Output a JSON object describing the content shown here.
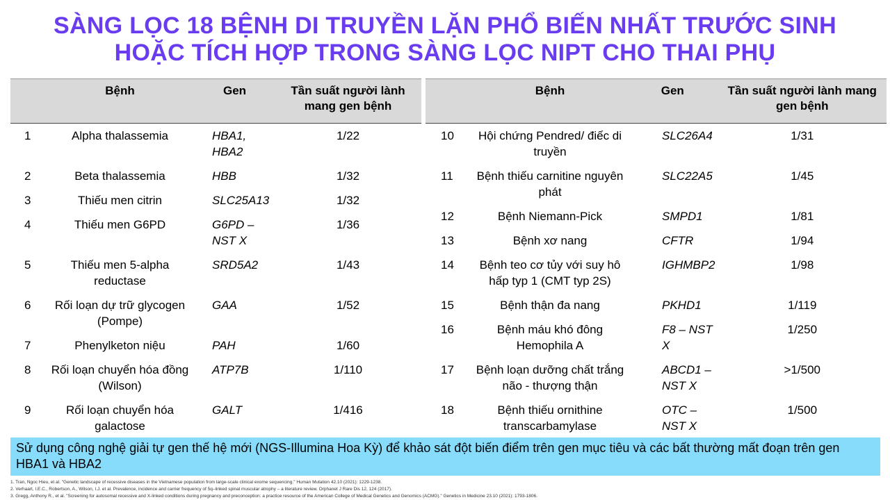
{
  "title": {
    "line1": "SÀNG LỌC 18 BỆNH DI TRUYỀN LẶN PHỔ BIẾN NHẤT TRƯỚC SINH",
    "line2": "HOẶC TÍCH HỢP TRONG SÀNG LỌC NIPT CHO THAI PHỤ"
  },
  "headers": {
    "disease": "Bệnh",
    "gene": "Gen",
    "freq": "Tần suất người lành mang gen bệnh"
  },
  "left_rows": [
    {
      "n": "1",
      "d": "Alpha thalassemia",
      "g": "HBA1, HBA2",
      "f": "1/22"
    },
    {
      "n": "2",
      "d": "Beta thalassemia",
      "g": "HBB",
      "f": "1/32"
    },
    {
      "n": "3",
      "d": "Thiếu men citrin",
      "g": "SLC25A13",
      "f": "1/32"
    },
    {
      "n": "4",
      "d": "Thiếu men G6PD",
      "g": "G6PD – NST X",
      "f": "1/36"
    },
    {
      "n": "5",
      "d": "Thiếu men 5-alpha reductase",
      "g": "SRD5A2",
      "f": "1/43"
    },
    {
      "n": "6",
      "d": "Rối loạn dự trữ glycogen (Pompe)",
      "g": "GAA",
      "f": "1/52"
    },
    {
      "n": "7",
      "d": "Phenylketon niệu",
      "g": "PAH",
      "f": "1/60"
    },
    {
      "n": "8",
      "d": "Rối loạn chuyển hóa đồng (Wilson)",
      "g": "ATP7B",
      "f": "1/110"
    },
    {
      "n": "9",
      "d": "Rối loạn chuyển hóa galactose",
      "g": "GALT",
      "f": "1/416"
    }
  ],
  "right_rows": [
    {
      "n": "10",
      "d": "Hội chứng Pendred/ điếc di truyền",
      "g": "SLC26A4",
      "f": "1/31"
    },
    {
      "n": "11",
      "d": "Bệnh thiếu carnitine nguyên phát",
      "g": "SLC22A5",
      "f": "1/45"
    },
    {
      "n": "12",
      "d": "Bệnh Niemann-Pick",
      "g": "SMPD1",
      "f": "1/81"
    },
    {
      "n": "13",
      "d": "Bệnh xơ nang",
      "g": "CFTR",
      "f": "1/94"
    },
    {
      "n": "14",
      "d": "Bệnh teo cơ tủy với suy hô hấp typ 1 (CMT typ 2S)",
      "g": "IGHMBP2",
      "f": "1/98"
    },
    {
      "n": "15",
      "d": "Bệnh thận đa nang",
      "g": "PKHD1",
      "f": "1/119"
    },
    {
      "n": "16",
      "d": "Bệnh máu khó đông Hemophila A",
      "g": "F8 – NST X",
      "f": "1/250"
    },
    {
      "n": "17",
      "d": "Bệnh loạn dưỡng chất trắng não - thượng thận",
      "g": "ABCD1 – NST X",
      "f": ">1/500"
    },
    {
      "n": "18",
      "d": "Bệnh thiếu ornithine transcarbamylase",
      "g": "OTC – NST X",
      "f": "1/500"
    }
  ],
  "note": "Sử dụng công nghệ giải tự gen thế hệ mới (NGS-Illumina Hoa Kỳ) để khảo sát đột biến điểm trên gen mục tiêu và các bất thường mất đoạn trên gen HBA1 và HBA2",
  "references": [
    "1. Tran, Ngoc Hieu, et al. \"Genetic landscape of recessive diseases in the Vietnamese population from large-scale clinical exome sequencing.\" Human Mutation 42.10 (2021): 1229-1238.",
    "2. Verhaart, I.E.C., Robertson, A., Wilson, I.J. et al. Prevalence, incidence and carrier frequency of 5q–linked spinal muscular atrophy – a literature review. Orphanet J Rare Dis 12, 124 (2017).",
    "3. Gregg, Anthony R., et al. \"Screening for autosomal recessive and X-linked conditions during pregnancy and preconception: a practice resource of the American College of Medical Genetics and Genomics (ACMG).\" Genetics in Medicine 23.10 (2021): 1793-1806."
  ],
  "colors": {
    "title": "#6a3cf0",
    "header_bg": "#d9d9d9",
    "note_bg": "#87dcfb"
  }
}
